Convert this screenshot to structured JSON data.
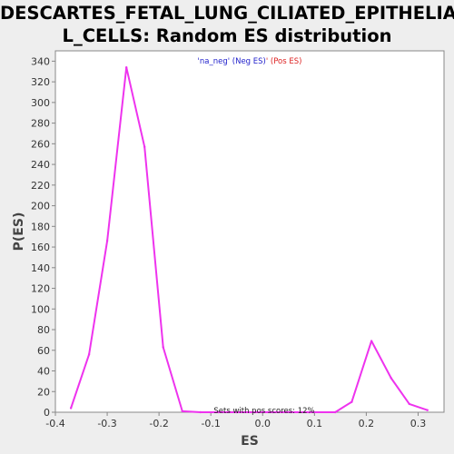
{
  "chart_title": {
    "line1": "DESCARTES_FETAL_LUNG_CILIATED_EPITHELIA",
    "line2": "L_CELLS: Random ES distribution"
  },
  "colors": {
    "background": "#eeeeee",
    "plot_background": "#ffffff",
    "series": "#ee33ee",
    "legend_neg": "#2222cc",
    "legend_pos": "#dd2222",
    "axis": "#888888"
  },
  "legend": {
    "part1": "'na_neg'",
    "part2": " (Neg ES)",
    "part3": "'",
    "part4": " (Pos ES)"
  },
  "annotation": "Sets with pos scores: 12%",
  "chart_data": {
    "type": "line",
    "title": "DESCARTES_FETAL_LUNG_CILIATED_EPITHELIAL_CELLS: Random ES distribution",
    "xlabel": "ES",
    "ylabel": "P(ES)",
    "xlim": [
      -0.4,
      0.35
    ],
    "ylim": [
      0,
      350
    ],
    "x_ticks": [
      "-0.4",
      "-0.3",
      "-0.2",
      "-0.1",
      "0.0",
      "0.1",
      "0.2",
      "0.3"
    ],
    "x_tick_values": [
      -0.4,
      -0.3,
      -0.2,
      -0.1,
      0.0,
      0.1,
      0.2,
      0.3
    ],
    "y_ticks": [
      "0",
      "20",
      "40",
      "60",
      "80",
      "100",
      "120",
      "140",
      "160",
      "180",
      "200",
      "220",
      "240",
      "260",
      "280",
      "300",
      "320",
      "340"
    ],
    "y_tick_values": [
      0,
      20,
      40,
      60,
      80,
      100,
      120,
      140,
      160,
      180,
      200,
      220,
      240,
      260,
      280,
      300,
      320,
      340
    ],
    "grid": false,
    "legend_position": "top-center",
    "series": [
      {
        "x": [
          -0.37,
          -0.335,
          -0.3,
          -0.263,
          -0.228,
          -0.192,
          -0.155,
          -0.12,
          -0.085,
          -0.05,
          -0.015,
          0.02,
          0.055,
          0.09,
          0.14,
          0.172,
          0.21,
          0.248,
          0.283,
          0.318
        ],
        "y": [
          4,
          56,
          166,
          334,
          257,
          63,
          1,
          0,
          0,
          0,
          0,
          0,
          0,
          0,
          0,
          10,
          69,
          33,
          8,
          2
        ]
      }
    ]
  }
}
